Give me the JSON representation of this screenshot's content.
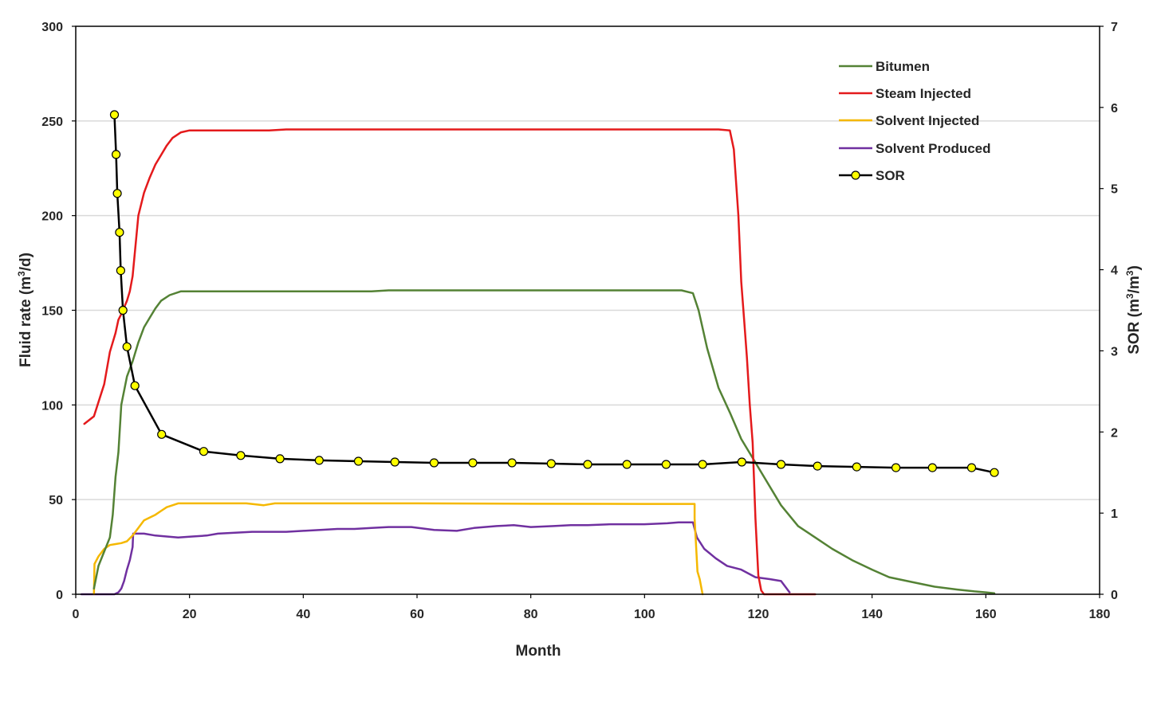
{
  "chart_data": {
    "type": "line",
    "xlabel": "Month",
    "ylabel_main": "Fluid rate (m",
    "ylabel_sup": "3",
    "ylabel_tail": "/d)",
    "y2label_main": "SOR (m",
    "y2label_sup1": "3",
    "y2label_mid": "/m",
    "y2label_sup2": "3",
    "y2label_tail": ")",
    "xlim": [
      0,
      180
    ],
    "xticks": [
      "0",
      "20",
      "40",
      "60",
      "80",
      "100",
      "120",
      "140",
      "160",
      "180"
    ],
    "ylim": [
      0,
      300
    ],
    "yticks": [
      "0",
      "50",
      "100",
      "150",
      "200",
      "250",
      "300"
    ],
    "y2lim": [
      0,
      7
    ],
    "y2ticks": [
      "0",
      "1",
      "2",
      "3",
      "4",
      "5",
      "6",
      "7"
    ],
    "grid": "horizontal",
    "legend_position": "top-right",
    "series": [
      {
        "name": "Bitumen",
        "color": "#548235",
        "axis": "left",
        "marker": false,
        "x": [
          3.2,
          4,
          6,
          6.5,
          7,
          7.5,
          8,
          9,
          10,
          11,
          12,
          13,
          14,
          15,
          16.5,
          18.5,
          20,
          30,
          40,
          52,
          55,
          70,
          90,
          105,
          106.5,
          108.5,
          109.5,
          111,
          113,
          115,
          117,
          119,
          121,
          124,
          127,
          130,
          133,
          136.5,
          140,
          143,
          147,
          151,
          155,
          158,
          160,
          161.5
        ],
        "y": [
          3,
          15,
          30,
          42,
          62,
          75,
          100,
          115,
          123,
          133,
          141,
          146,
          151,
          155,
          158,
          160,
          160,
          160,
          160,
          160,
          160.5,
          160.5,
          160.5,
          160.5,
          160.5,
          159,
          150,
          130,
          109,
          96,
          82,
          72,
          62,
          47,
          36,
          30,
          24,
          18,
          13,
          9,
          6.5,
          4,
          2.5,
          1.5,
          1,
          0.5
        ]
      },
      {
        "name": "Steam Injected",
        "color": "#e41a1c",
        "axis": "left",
        "marker": false,
        "x": [
          1.5,
          3.2,
          5,
          6,
          7,
          7.5,
          8,
          9,
          9.5,
          10,
          11,
          12,
          13,
          14,
          15,
          16,
          17,
          18.5,
          20,
          25,
          34,
          37,
          50,
          70,
          90,
          100,
          110,
          113,
          115,
          115.7,
          116.5,
          117,
          117.5,
          118,
          118.5,
          119,
          119.5,
          120,
          120.5,
          121,
          124,
          127,
          130
        ],
        "y": [
          90,
          94,
          111,
          128,
          138,
          145,
          148,
          155,
          160,
          168,
          200,
          212,
          220,
          227,
          232,
          237,
          241,
          244,
          245,
          245,
          245,
          245.5,
          245.5,
          245.5,
          245.5,
          245.5,
          245.5,
          245.5,
          245,
          235,
          200,
          165,
          145,
          125,
          100,
          80,
          40,
          10,
          2,
          0,
          0,
          0,
          0
        ]
      },
      {
        "name": "Solvent Injected",
        "color": "#f5b800",
        "axis": "left",
        "marker": false,
        "x": [
          3.2,
          3.3,
          4,
          5,
          6,
          7,
          8,
          9,
          10,
          11,
          12,
          13,
          14,
          15,
          16,
          17,
          18,
          20,
          25,
          30,
          33,
          35,
          40,
          60,
          80,
          100,
          108.8,
          108.8,
          109.3,
          109.7,
          110.2
        ],
        "y": [
          0,
          16,
          20,
          24,
          26,
          26.5,
          27,
          28,
          31,
          35,
          39,
          40.5,
          42,
          44,
          46,
          47,
          48,
          48,
          48,
          48,
          47,
          48,
          48,
          48,
          47.8,
          47.7,
          47.7,
          40,
          12,
          8,
          0
        ]
      },
      {
        "name": "Solvent Produced",
        "color": "#7030a0",
        "axis": "left",
        "marker": false,
        "x": [
          1,
          6.8,
          7.5,
          8,
          8.5,
          9,
          9.5,
          10,
          10.1,
          12,
          14,
          16,
          18,
          20.5,
          23,
          25,
          28,
          31,
          34,
          37,
          40,
          43,
          46,
          49,
          52,
          55,
          59,
          63,
          67,
          70,
          74,
          77,
          80,
          84,
          87,
          90,
          94,
          97,
          100,
          104,
          106,
          108.5,
          109.2,
          110.5,
          112.5,
          114.5,
          117,
          119.5,
          122,
          124,
          125.5
        ],
        "y": [
          0,
          0,
          1,
          3,
          7,
          13,
          18,
          25,
          32,
          32,
          31,
          30.5,
          30,
          30.5,
          31,
          32,
          32.5,
          33,
          33,
          33,
          33.5,
          34,
          34.5,
          34.5,
          35,
          35.5,
          35.5,
          34,
          33.5,
          35,
          36,
          36.5,
          35.5,
          36,
          36.5,
          36.5,
          37,
          37,
          37,
          37.5,
          38,
          38,
          30,
          24,
          19,
          15,
          13,
          9,
          8,
          7,
          1
        ]
      },
      {
        "name": "SOR",
        "color": "#000000",
        "axis": "right",
        "marker": true,
        "marker_fill": "#ffff00",
        "x": [
          6.8,
          7.1,
          7.3,
          7.7,
          7.9,
          8.3,
          9.0,
          10.4,
          15.1,
          22.5,
          29.0,
          35.9,
          42.8,
          49.7,
          56.1,
          63.0,
          69.8,
          76.7,
          83.6,
          90.0,
          96.9,
          103.8,
          110.2,
          117.1,
          124.0,
          130.4,
          137.3,
          144.2,
          150.6,
          157.5,
          161.5
        ],
        "y": [
          5.91,
          5.42,
          4.94,
          4.46,
          3.99,
          3.5,
          3.05,
          2.57,
          1.97,
          1.76,
          1.71,
          1.67,
          1.65,
          1.64,
          1.63,
          1.62,
          1.62,
          1.62,
          1.61,
          1.6,
          1.6,
          1.6,
          1.6,
          1.63,
          1.6,
          1.58,
          1.57,
          1.56,
          1.56,
          1.56,
          1.5
        ]
      }
    ]
  }
}
